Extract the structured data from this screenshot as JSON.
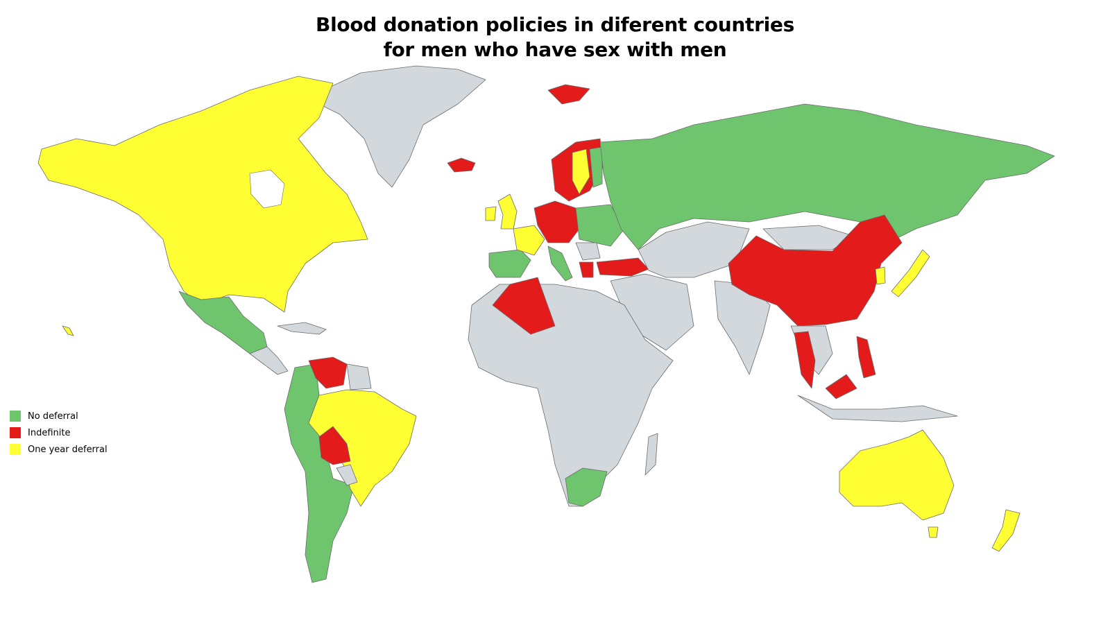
{
  "title": {
    "line1": "Blood donation policies in diferent countries",
    "line2": "for men who have sex with men"
  },
  "colors": {
    "no_deferral": "#6ec56e",
    "indefinite": "#e31b1b",
    "one_year_deferral": "#ffff33",
    "no_data": "#d3d8dc"
  },
  "legend": [
    {
      "label": "No deferral",
      "color": "#6ec56e"
    },
    {
      "label": "Indefinite",
      "color": "#e31b1b"
    },
    {
      "label": "One year deferral",
      "color": "#ffff33"
    }
  ]
}
